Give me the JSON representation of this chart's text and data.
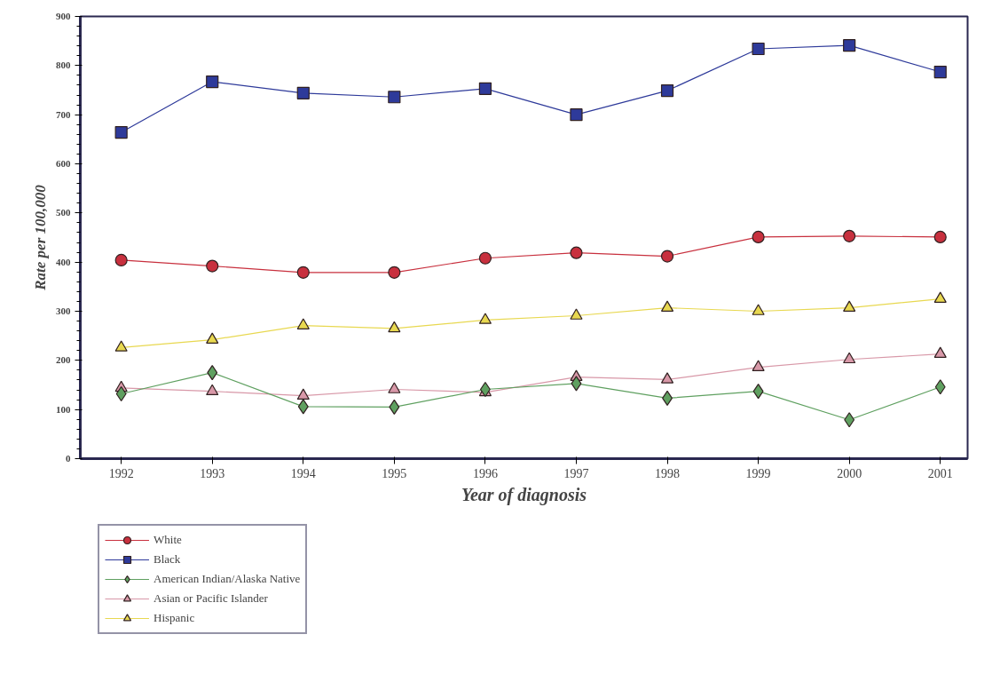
{
  "chart_data": {
    "type": "line",
    "xlabel": "Year of diagnosis",
    "ylabel": "Rate per 100,000",
    "x": [
      1992,
      1993,
      1994,
      1995,
      1996,
      1997,
      1998,
      1999,
      2000,
      2001
    ],
    "xlim": [
      1991.55,
      2001.3
    ],
    "xticks": [
      1992,
      1993,
      1994,
      1995,
      1996,
      1997,
      1998,
      1999,
      2000,
      2001
    ],
    "ylim": [
      0,
      900
    ],
    "yticks": [
      0,
      100,
      200,
      300,
      400,
      500,
      600,
      700,
      800,
      900
    ],
    "grid": false,
    "legend": "bottom left",
    "series": [
      {
        "name": "White",
        "color": "#c8303e",
        "marker": "circle",
        "values": [
          404,
          392,
          379,
          379,
          408,
          419,
          412,
          451,
          453,
          451
        ]
      },
      {
        "name": "Black",
        "color": "#2e3a9a",
        "marker": "square",
        "values": [
          664,
          767,
          744,
          736,
          753,
          700,
          749,
          834,
          841,
          787
        ]
      },
      {
        "name": "American Indian/Alaska Native",
        "color": "#5fa060",
        "marker": "diamond",
        "values": [
          132,
          175,
          106,
          105,
          141,
          153,
          123,
          137,
          79,
          146
        ]
      },
      {
        "name": "Asian or Pacific Islander",
        "color": "#d898a8",
        "marker": "triangle",
        "values": [
          144,
          137,
          128,
          141,
          135,
          166,
          161,
          186,
          202,
          213
        ]
      },
      {
        "name": "Hispanic",
        "color": "#e8d850",
        "marker": "triangle",
        "values": [
          226,
          242,
          271,
          265,
          282,
          291,
          307,
          300,
          307,
          325
        ]
      }
    ]
  }
}
